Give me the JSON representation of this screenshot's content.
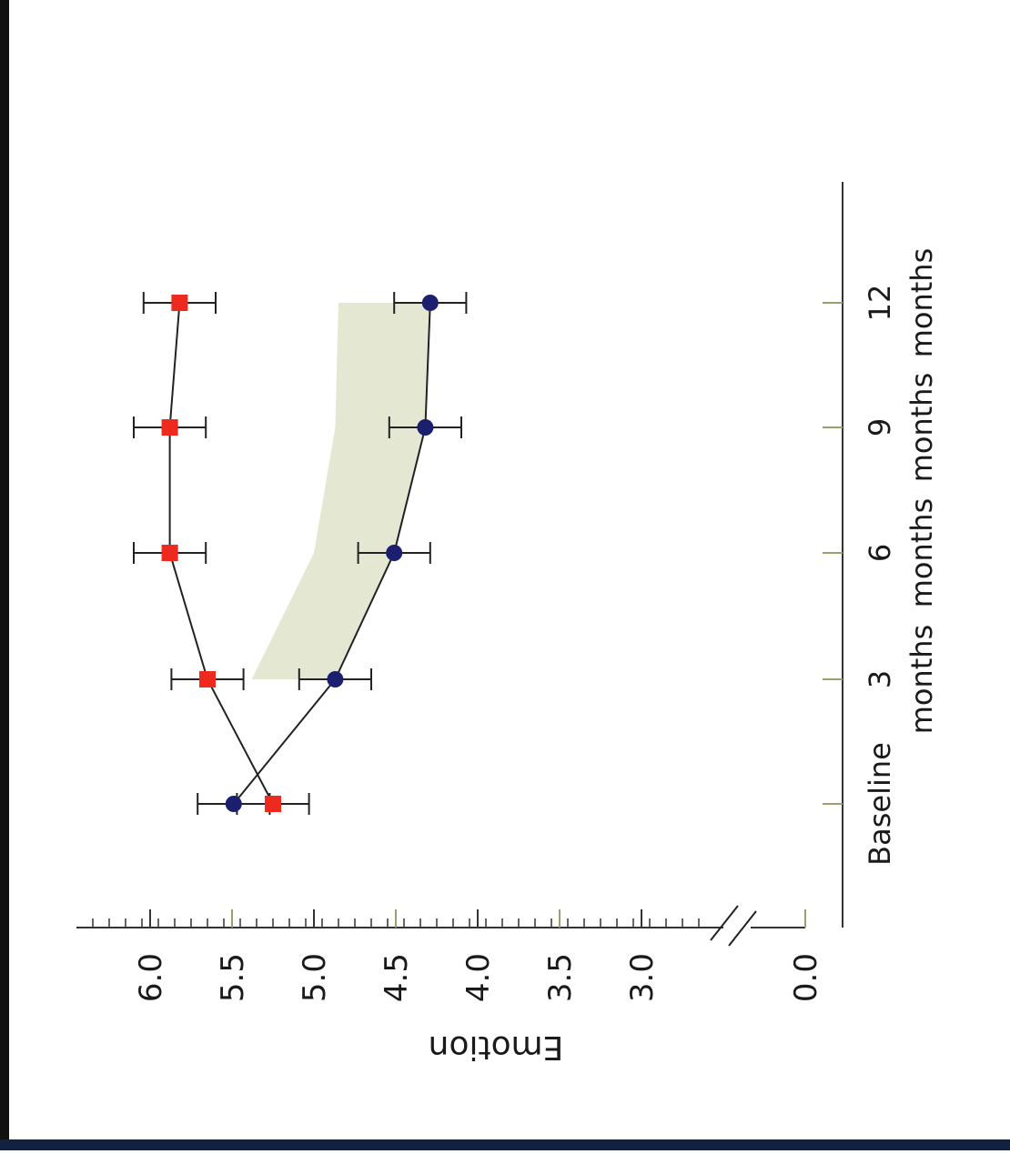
{
  "chart_data": {
    "type": "line",
    "orientation": "rotated-90",
    "ylabel": "Emotion",
    "xlabel": "",
    "categories": [
      "Baseline",
      "3 months",
      "6 months",
      "9 months",
      "12 months"
    ],
    "y_ticks": [
      "6.0",
      "5.5",
      "5.0",
      "4.5",
      "4.0",
      "3.5",
      "3.0",
      "0.0"
    ],
    "ylim": [
      2.6,
      6.45
    ],
    "y_axis_break": true,
    "grid": false,
    "series": [
      {
        "marker": "square",
        "color": "#ee2a1e",
        "values": [
          5.25,
          5.65,
          5.88,
          5.88,
          5.82
        ],
        "errors": [
          0.22,
          0.22,
          0.22,
          0.22,
          0.22
        ]
      },
      {
        "marker": "circle",
        "color": "#1b1f6e",
        "values": [
          5.49,
          4.87,
          4.51,
          4.32,
          4.29
        ],
        "errors": [
          0.22,
          0.22,
          0.22,
          0.22,
          0.22
        ]
      }
    ],
    "band": {
      "color": "#e4e8d2",
      "x_start": 1,
      "upper": [
        5.38,
        5.0,
        4.87,
        4.85
      ],
      "lower": [
        4.87,
        4.51,
        4.32,
        4.29
      ]
    }
  }
}
